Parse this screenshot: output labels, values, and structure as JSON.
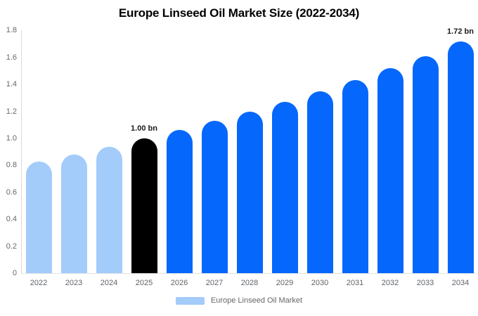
{
  "header": {
    "title": "Europe Linseed Oil Market Size (2022-2034)"
  },
  "legend": {
    "label": "Europe Linseed Oil Market",
    "swatch_color": "#a4ccfa"
  },
  "colors": {
    "historical": "#a4ccfa",
    "highlight": "#000000",
    "forecast": "#0667fc",
    "axis_line": "#d9d9d9",
    "baseline_line": "#e3e3e3",
    "tick_text": "#666666",
    "year_text": "#5f6368",
    "annotation_text": "#1a1a1a",
    "legend_text": "#666666",
    "title_text": "#000000",
    "background": "#ffffff"
  },
  "chart_data": {
    "type": "bar",
    "title": "Europe Linseed Oil Market Size (2022-2034)",
    "series_name": "Europe Linseed Oil Market",
    "unit": "bn",
    "categories": [
      "2022",
      "2023",
      "2024",
      "2025",
      "2026",
      "2027",
      "2028",
      "2029",
      "2030",
      "2031",
      "2032",
      "2033",
      "2034"
    ],
    "values": [
      0.83,
      0.88,
      0.94,
      1.0,
      1.06,
      1.13,
      1.2,
      1.27,
      1.35,
      1.43,
      1.52,
      1.61,
      1.72
    ],
    "bar_color_keys": [
      "historical",
      "historical",
      "historical",
      "highlight",
      "forecast",
      "forecast",
      "forecast",
      "forecast",
      "forecast",
      "forecast",
      "forecast",
      "forecast",
      "forecast"
    ],
    "bar_segments": {
      "historical_years": [
        "2022",
        "2023",
        "2024"
      ],
      "highlight_year": "2025",
      "forecast_years": [
        "2026",
        "2027",
        "2028",
        "2029",
        "2030",
        "2031",
        "2032",
        "2033",
        "2034"
      ]
    },
    "xlabel": "",
    "ylabel": "",
    "ylim": [
      0,
      1.8
    ],
    "ytick_labels": [
      "0",
      "0.2",
      "0.4",
      "0.6",
      "0.8",
      "1.0",
      "1.2",
      "1.4",
      "1.6",
      "1.8"
    ],
    "grid": false,
    "legend_position": "bottom-center",
    "annotations": [
      {
        "category": "2025",
        "text": "1.00 bn"
      },
      {
        "category": "2034",
        "text": "1.72 bn"
      }
    ]
  }
}
